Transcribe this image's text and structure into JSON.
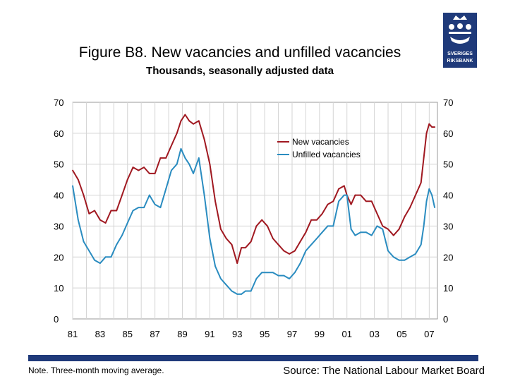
{
  "title": "Figure B8. New vacancies and unfilled vacancies",
  "subtitle": "Thousands, seasonally adjusted data",
  "note": "Note. Three-month moving average.",
  "source": "Source: The National Labour Market Board",
  "logo": {
    "text_top": "SVERIGES",
    "text_bottom": "RIKSBANK",
    "color": "#1f3a7a"
  },
  "chart_data": {
    "type": "line",
    "x_tick_labels": [
      "81",
      "83",
      "85",
      "87",
      "89",
      "91",
      "93",
      "95",
      "97",
      "99",
      "01",
      "03",
      "05",
      "07"
    ],
    "x_range": [
      1981,
      2007.6
    ],
    "ylim": [
      0,
      70
    ],
    "y_ticks": [
      0,
      10,
      20,
      30,
      40,
      50,
      60,
      70
    ],
    "grid": true,
    "legend_position": "upper-right",
    "series": [
      {
        "name": "New vacancies",
        "color": "#a01820",
        "x": [
          1981.0,
          1981.4,
          1981.8,
          1982.2,
          1982.6,
          1983.0,
          1983.4,
          1983.8,
          1984.2,
          1984.6,
          1985.0,
          1985.4,
          1985.8,
          1986.2,
          1986.6,
          1987.0,
          1987.4,
          1987.8,
          1988.2,
          1988.6,
          1988.9,
          1989.2,
          1989.5,
          1989.8,
          1990.2,
          1990.6,
          1991.0,
          1991.4,
          1991.8,
          1992.2,
          1992.6,
          1993.0,
          1993.3,
          1993.6,
          1994.0,
          1994.4,
          1994.8,
          1995.2,
          1995.6,
          1996.0,
          1996.4,
          1996.8,
          1997.2,
          1997.6,
          1998.0,
          1998.4,
          1998.8,
          1999.2,
          1999.6,
          2000.0,
          2000.4,
          2000.8,
          2001.0,
          2001.3,
          2001.6,
          2002.0,
          2002.4,
          2002.8,
          2003.2,
          2003.6,
          2004.0,
          2004.4,
          2004.8,
          2005.2,
          2005.6,
          2006.0,
          2006.4,
          2006.6,
          2006.8,
          2007.0,
          2007.2,
          2007.4
        ],
        "y": [
          48,
          45,
          40,
          34,
          35,
          32,
          31,
          35,
          35,
          40,
          45,
          49,
          48,
          49,
          47,
          47,
          52,
          52,
          56,
          60,
          64,
          66,
          64,
          63,
          64,
          58,
          50,
          38,
          29,
          26,
          24,
          18,
          23,
          23,
          25,
          30,
          32,
          30,
          26,
          24,
          22,
          21,
          22,
          25,
          28,
          32,
          32,
          34,
          37,
          38,
          42,
          43,
          40,
          37,
          40,
          40,
          38,
          38,
          34,
          30,
          29,
          27,
          29,
          33,
          36,
          40,
          44,
          52,
          60,
          63,
          62,
          62
        ]
      },
      {
        "name": "Unfilled vacancies",
        "color": "#2a8cc0",
        "x": [
          1981.0,
          1981.4,
          1981.8,
          1982.2,
          1982.6,
          1983.0,
          1983.4,
          1983.8,
          1984.2,
          1984.6,
          1985.0,
          1985.4,
          1985.8,
          1986.2,
          1986.6,
          1987.0,
          1987.4,
          1987.8,
          1988.2,
          1988.6,
          1988.9,
          1989.2,
          1989.5,
          1989.8,
          1990.2,
          1990.6,
          1991.0,
          1991.4,
          1991.8,
          1992.2,
          1992.6,
          1993.0,
          1993.3,
          1993.6,
          1994.0,
          1994.4,
          1994.8,
          1995.2,
          1995.6,
          1996.0,
          1996.4,
          1996.8,
          1997.2,
          1997.6,
          1998.0,
          1998.4,
          1998.8,
          1999.2,
          1999.6,
          2000.0,
          2000.4,
          2000.8,
          2001.0,
          2001.3,
          2001.6,
          2002.0,
          2002.4,
          2002.8,
          2003.2,
          2003.6,
          2004.0,
          2004.4,
          2004.8,
          2005.2,
          2005.6,
          2006.0,
          2006.4,
          2006.6,
          2006.8,
          2007.0,
          2007.2,
          2007.4
        ],
        "y": [
          43,
          32,
          25,
          22,
          19,
          18,
          20,
          20,
          24,
          27,
          31,
          35,
          36,
          36,
          40,
          37,
          36,
          42,
          48,
          50,
          55,
          52,
          50,
          47,
          52,
          40,
          26,
          17,
          13,
          11,
          9,
          8,
          8,
          9,
          9,
          13,
          15,
          15,
          15,
          14,
          14,
          13,
          15,
          18,
          22,
          24,
          26,
          28,
          30,
          30,
          38,
          40,
          40,
          29,
          27,
          28,
          28,
          27,
          30,
          29,
          22,
          20,
          19,
          19,
          20,
          21,
          24,
          30,
          38,
          42,
          40,
          36
        ]
      }
    ]
  }
}
